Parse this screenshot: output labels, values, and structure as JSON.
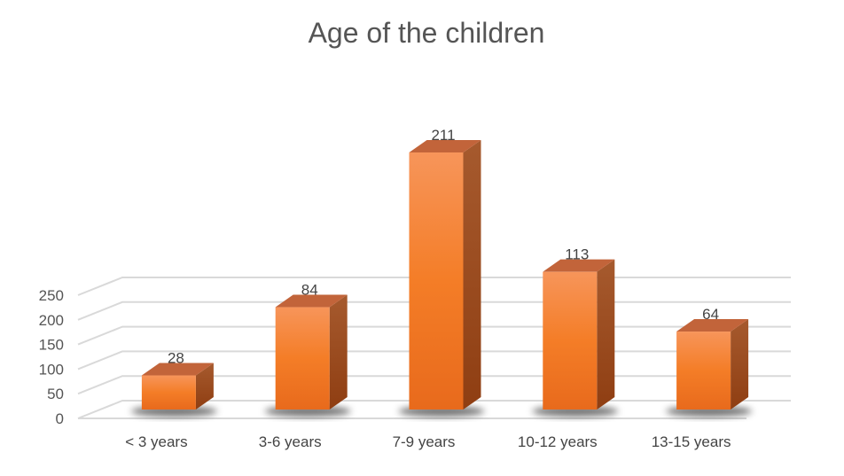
{
  "chart_data": {
    "type": "bar",
    "title": "Age of the children",
    "categories": [
      "< 3 years",
      "3-6 years",
      "7-9  years",
      "10-12 years",
      "13-15 years"
    ],
    "values": [
      28,
      84,
      211,
      113,
      64
    ],
    "yticks": [
      0,
      50,
      100,
      150,
      200,
      250
    ],
    "ylim": [
      0,
      250
    ],
    "grid": true,
    "legend": "none",
    "style": "3d-column",
    "colors": {
      "bar_top": "#f7955a",
      "bar_mid": "#f47d27",
      "bar_bottom": "#e86a1c",
      "bar_side": "#a0461a",
      "bar_cap": "#c2643a",
      "grid": "#d9d9d9"
    }
  }
}
